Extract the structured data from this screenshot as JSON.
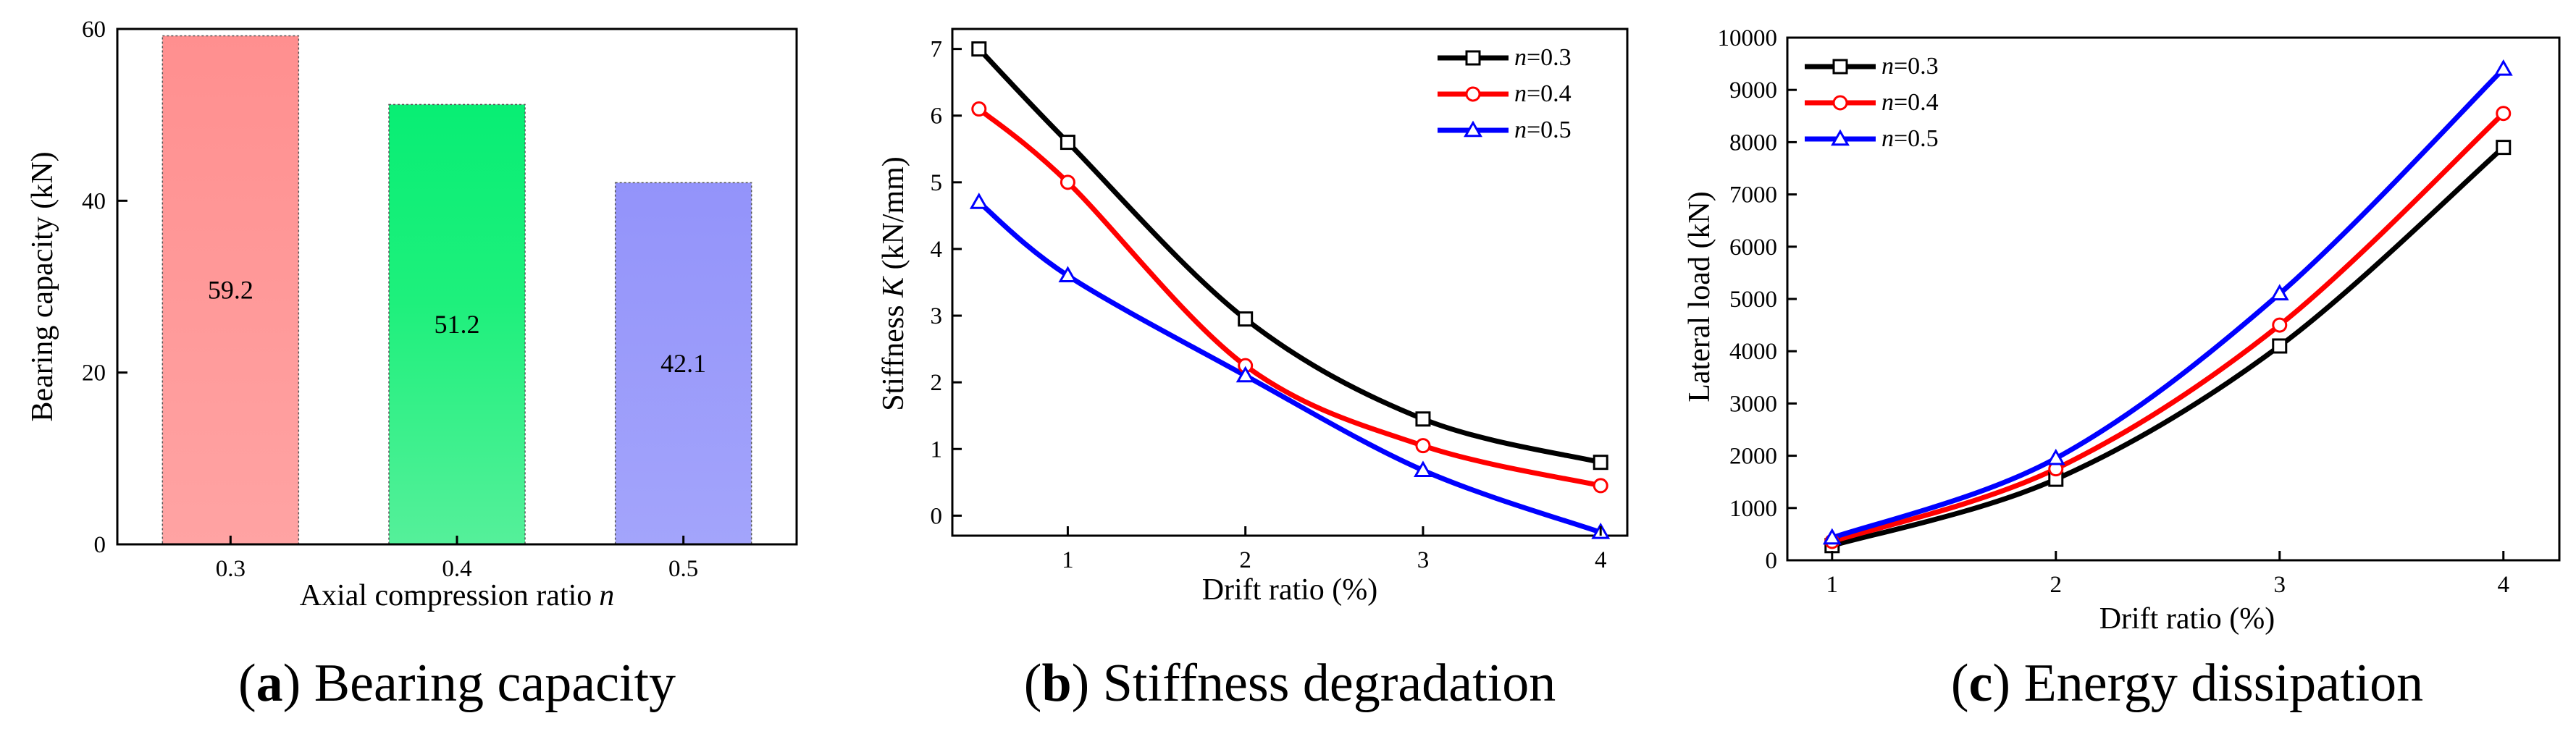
{
  "charts": [
    {
      "caption_letter": "a",
      "caption_text": "Bearing capacity",
      "chart_data": {
        "type": "bar",
        "categories": [
          "0.3",
          "0.4",
          "0.5"
        ],
        "values": [
          59.2,
          51.2,
          42.1
        ],
        "value_labels": [
          "59.2",
          "51.2",
          "42.1"
        ],
        "bar_colors": [
          "#ff9191",
          "#1ef07c",
          "#9a9bfb"
        ],
        "xlabel": "Axial compression ratio",
        "xlabel_italic": "n",
        "ylabel": "Bearing capacity (kN)",
        "ylim": [
          0,
          60
        ],
        "yticks": [
          0,
          20,
          40,
          60
        ],
        "grid": false
      }
    },
    {
      "caption_letter": "b",
      "caption_text": "Stiffness degradation",
      "chart_data": {
        "type": "line",
        "x": [
          0.5,
          1,
          2,
          3,
          4
        ],
        "series": [
          {
            "name": "n=0.3",
            "color": "#000000",
            "marker": "square",
            "values": [
              7.0,
              5.6,
              2.95,
              1.45,
              0.8
            ]
          },
          {
            "name": "n=0.4",
            "color": "#ff0000",
            "marker": "circle",
            "values": [
              6.1,
              5.0,
              2.25,
              1.05,
              0.45
            ]
          },
          {
            "name": "n=0.5",
            "color": "#0000ff",
            "marker": "triangle",
            "values": [
              4.7,
              3.6,
              2.1,
              0.68,
              -0.25
            ]
          }
        ],
        "xlabel": "Drift ratio (%)",
        "ylabel_pre": "Stiffness ",
        "ylabel_italic": "K",
        "ylabel_post": " (kN/mm)",
        "xlim": [
          0.35,
          4.15
        ],
        "ylim": [
          -0.3,
          7.3
        ],
        "xticks": [
          1,
          2,
          3,
          4
        ],
        "yticks": [
          0,
          1,
          2,
          3,
          4,
          5,
          6,
          7
        ],
        "legend_position": "top-right",
        "grid": false
      }
    },
    {
      "caption_letter": "c",
      "caption_text": "Energy dissipation",
      "chart_data": {
        "type": "line",
        "x": [
          1,
          2,
          3,
          4
        ],
        "series": [
          {
            "name": "n=0.3",
            "color": "#000000",
            "marker": "square",
            "values": [
              280,
              1550,
              4100,
              7900
            ]
          },
          {
            "name": "n=0.4",
            "color": "#ff0000",
            "marker": "circle",
            "values": [
              360,
              1750,
              4500,
              8550
            ]
          },
          {
            "name": "n=0.5",
            "color": "#0000ff",
            "marker": "triangle",
            "values": [
              430,
              1950,
              5100,
              9400
            ]
          }
        ],
        "xlabel": "Drift ratio (%)",
        "ylabel": "Lateral load (kN)",
        "xlim": [
          0.8,
          4.25
        ],
        "ylim": [
          0,
          10000
        ],
        "xticks": [
          1,
          2,
          3,
          4
        ],
        "yticks": [
          0,
          1000,
          2000,
          3000,
          4000,
          5000,
          6000,
          7000,
          8000,
          9000,
          10000
        ],
        "legend_position": "top-left",
        "grid": false
      }
    }
  ]
}
